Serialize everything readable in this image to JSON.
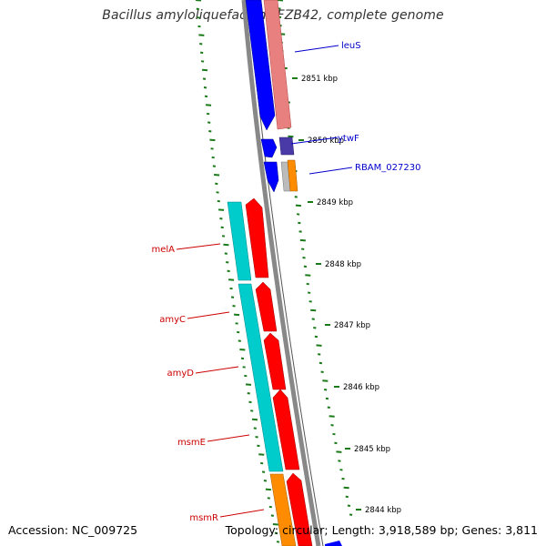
{
  "title": "Bacillus amyloliquefaciens FZB42, complete genome",
  "footer": {
    "accession": "Accession: NC_009725",
    "summary": "Topology: circular; Length: 3,918,589 bp; Genes: 3,811"
  },
  "ticks": [
    "2851 kbp",
    "2850 kbp",
    "2849 kbp",
    "2848 kbp",
    "2847 kbp",
    "2846 kbp",
    "2845 kbp",
    "2844 kbp"
  ],
  "genes": [
    {
      "name": "leuS",
      "side": "right",
      "color": "#0000cc"
    },
    {
      "name": "ytwF",
      "side": "right",
      "color": "#0000cc"
    },
    {
      "name": "RBAM_027230",
      "side": "right",
      "color": "#0000cc"
    },
    {
      "name": "melA",
      "side": "left",
      "color": "#cc0000"
    },
    {
      "name": "amyC",
      "side": "left",
      "color": "#cc0000"
    },
    {
      "name": "amyD",
      "side": "left",
      "color": "#cc0000"
    },
    {
      "name": "msmE",
      "side": "left",
      "color": "#cc0000"
    },
    {
      "name": "msmR",
      "side": "left",
      "color": "#cc0000"
    }
  ],
  "colors": {
    "cds_forward": "#0000ff",
    "cds_reverse": "#ff0000",
    "rna_forward": "#e88080",
    "rna_reverse": "#00cccc",
    "other": "#ff8c00",
    "backbone": "#888888",
    "ruler": "#1a7a1a"
  }
}
